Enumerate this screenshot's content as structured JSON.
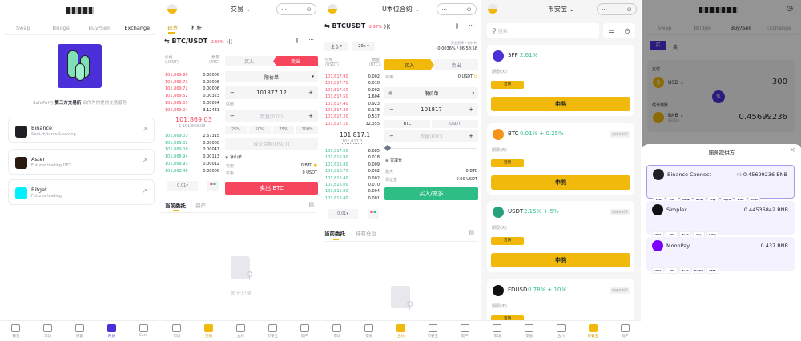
{
  "colors": {
    "safepal_purple": "#4b2fd8",
    "binance_yellow": "#f0b90b",
    "sell_red": "#f6465d",
    "buy_green": "#2ebd85"
  },
  "p1": {
    "tabs": [
      "Swap",
      "Bridge",
      "Buy/Sell",
      "Exchange"
    ],
    "active_tab": 3,
    "tagline": {
      "pre": "SafePal与 ",
      "bold": "第三方交易所",
      "post": " 合作为你提供交易服务"
    },
    "exchanges": [
      {
        "name": "Binance",
        "desc": "Spot, futures & saving",
        "color": "#1e2026",
        "icon": "binance-logo-icon"
      },
      {
        "name": "Aster",
        "desc": "Futures trading DEX",
        "color": "#2a1a10",
        "icon": "aster-logo-icon"
      },
      {
        "name": "Bitget",
        "desc": "Futures trading",
        "color": "#00f0ff",
        "icon": "bitget-logo-icon"
      }
    ],
    "nav": [
      "钱包",
      "市场",
      "探索",
      "闪兑",
      "Earn"
    ],
    "nav_active": 3
  },
  "p2": {
    "header": "交易",
    "tabs": [
      "现货",
      "杠杆"
    ],
    "pair": "BTC/USDT",
    "change": "-2.96%",
    "ob_price_hdr": "价格",
    "ob_price_unit": "(USDT)",
    "ob_qty_hdr": "数量",
    "ob_qty_unit": "(BTC)",
    "asks": [
      [
        "101,869.90",
        "0.00006"
      ],
      [
        "101,869.73",
        "0.00006"
      ],
      [
        "101,869.72",
        "0.00006"
      ],
      [
        "101,869.52",
        "0.00323"
      ],
      [
        "101,869.05",
        "0.00054"
      ],
      [
        "101,869.04",
        "3.12431"
      ]
    ],
    "mid": "101,869.03",
    "mid_usd": "$ 101,869.03",
    "bids": [
      [
        "101,869.03",
        "2.67315"
      ],
      [
        "101,869.02",
        "0.00060"
      ],
      [
        "101,869.00",
        "0.00047"
      ],
      [
        "101,868.94",
        "0.00113"
      ],
      [
        "101,868.93",
        "0.00012"
      ],
      [
        "101,868.48",
        "0.00006"
      ]
    ],
    "form": {
      "buy": "买入",
      "sell": "卖出",
      "order_type": "限价单",
      "price": "101877.12",
      "est_label": "估值",
      "qty_placeholder": "数量(BTC)",
      "percents": [
        "25%",
        "50%",
        "75%",
        "100%"
      ],
      "amount_placeholder": "成交金额(USDT)",
      "iceberg": "冰山单",
      "avail_label": "可用",
      "avail": "0 BTC",
      "sellable_label": "可卖",
      "sellable": "0 USDT",
      "submit": "卖出 BTC"
    },
    "depth": "0.01",
    "orders_tabs": [
      "当前委托",
      "资产"
    ],
    "empty": "暂无记录",
    "nav": [
      "市场",
      "交易",
      "合约",
      "币安宝",
      "资产"
    ],
    "nav_active": 1
  },
  "p3": {
    "header": "U本位合约",
    "pair": "BTCUSDT",
    "change": "-2.97%",
    "margin_mode": "全仓",
    "leverage": "20x",
    "funding_label": "资金费率 / 倒计时",
    "funding": "-0.0036% / 06:58:58",
    "ob_price_hdr": "价格",
    "ob_price_unit": "(USDT)",
    "ob_qty_hdr": "数量",
    "ob_qty_unit": "(BTC)",
    "asks": [
      [
        "101,817.90",
        "0.002"
      ],
      [
        "101,817.70",
        "0.010"
      ],
      [
        "101,817.60",
        "0.002"
      ],
      [
        "101,817.50",
        "1.604"
      ],
      [
        "101,817.40",
        "0.923"
      ],
      [
        "101,817.30",
        "0.178"
      ],
      [
        "101,817.20",
        "0.537"
      ],
      [
        "101,817.10",
        "32.355"
      ]
    ],
    "mid": "101,817.1",
    "mark": "101,817.0",
    "bids": [
      [
        "101,817.00",
        "8.685"
      ],
      [
        "101,816.90",
        "0.018"
      ],
      [
        "101,816.80",
        "0.009"
      ],
      [
        "101,816.70",
        "0.002"
      ],
      [
        "101,816.40",
        "0.002"
      ],
      [
        "101,816.00",
        "0.070"
      ],
      [
        "101,815.90",
        "0.004"
      ],
      [
        "101,815.40",
        "0.001"
      ]
    ],
    "form": {
      "buy": "买入",
      "sell": "卖出",
      "avail_label": "可用:",
      "avail": "0 USDT",
      "order_type": "限价单",
      "price": "101817",
      "unit_a": "BTC",
      "unit_b": "USDT",
      "qty_placeholder": "数量(BTC)",
      "reduce_only": "只减仓",
      "max_label": "最大",
      "max": "0 BTC",
      "margin_label": "保证金",
      "margin": "0.00 USDT",
      "submit": "买入/做多"
    },
    "depth": "0.01",
    "orders_tabs": [
      "当前委托",
      "持有仓位"
    ],
    "nav": [
      "市场",
      "交易",
      "合约",
      "币安宝",
      "资产"
    ],
    "nav_active": 2
  },
  "p4": {
    "header": "币安宝",
    "search_placeholder": "搜索",
    "products": [
      {
        "coin": "SFP",
        "apr": "2.61%",
        "tag": "",
        "color": "#4b2fd8"
      },
      {
        "coin": "BTC",
        "apr": "0.01% + 0.25%",
        "tag": "阶梯年利率",
        "color": "#f7931a"
      },
      {
        "coin": "USDT",
        "apr": "2.15% + 5%",
        "tag": "阶梯年利率",
        "color": "#26a17b"
      },
      {
        "coin": "FDUSD",
        "apr": "0.78% + 10%",
        "tag": "阶梯年利率",
        "color": "#111"
      }
    ],
    "term_label": "期限(天)",
    "flexible": "活期",
    "subscribe": "申购",
    "nav": [
      "市场",
      "交易",
      "合约",
      "币安宝",
      "资产"
    ],
    "nav_active": 3
  },
  "p5": {
    "tabs": [
      "Swap",
      "Bridge",
      "Buy/Sell",
      "Exchange"
    ],
    "active_tab": 2,
    "buy": "买",
    "sell": "卖",
    "pay_label": "支付",
    "pay_currency": "USD",
    "pay_amount": "300",
    "receive_label": "估计到账",
    "receive_currency": "BNB",
    "receive_network": "BEP20",
    "receive_amount": "0.45699236",
    "modal_title": "服务提供方",
    "providers": [
      {
        "name": "Binance Connect",
        "amount": "0.45699236 BNB",
        "recommended": true,
        "color": "#1e2026",
        "methods": [
          "VISA",
          "MC",
          "Bank",
          "G Pay",
          "Pay",
          "PayPal",
          "Wise",
          "Other"
        ]
      },
      {
        "name": "Simplex",
        "amount": "0.44536842 BNB",
        "recommended": false,
        "color": "#111",
        "methods": [
          "VISA",
          "MC",
          "Bank",
          "Pay",
          "G Pay"
        ]
      },
      {
        "name": "MoonPay",
        "amount": "0.437 BNB",
        "recommended": false,
        "color": "#7d00ff",
        "methods": [
          "VISA",
          "MC",
          "Bank",
          "PayPal",
          "SEPA"
        ]
      }
    ]
  }
}
